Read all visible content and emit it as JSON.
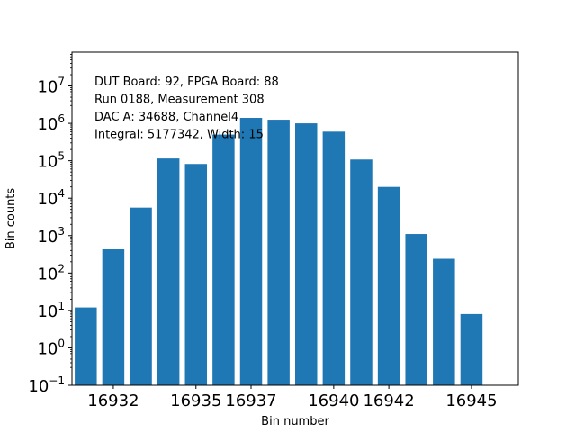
{
  "chart_data": {
    "type": "bar",
    "title": "",
    "xlabel": "Bin number",
    "ylabel": "Bin counts",
    "yscale": "log",
    "ylim": [
      0.1,
      80000000
    ],
    "xlim": [
      16930.5,
      16946.7
    ],
    "bar_color": "#1f77b4",
    "x": [
      16931,
      16932,
      16933,
      16934,
      16935,
      16936,
      16937,
      16938,
      16939,
      16940,
      16941,
      16942,
      16943,
      16944,
      16945,
      16946
    ],
    "values": [
      12,
      430,
      5600,
      115000,
      82000,
      500000,
      1400000,
      1250000,
      1000000,
      600000,
      108000,
      20000,
      1100,
      240,
      8,
      0
    ],
    "x_ticks": [
      16932,
      16935,
      16937,
      16940,
      16942,
      16945
    ],
    "y_ticks": [
      {
        "base": "10",
        "exp": "−1",
        "value": 0.1
      },
      {
        "base": "10",
        "exp": "0",
        "value": 1
      },
      {
        "base": "10",
        "exp": "1",
        "value": 10
      },
      {
        "base": "10",
        "exp": "2",
        "value": 100
      },
      {
        "base": "10",
        "exp": "3",
        "value": 1000
      },
      {
        "base": "10",
        "exp": "4",
        "value": 10000
      },
      {
        "base": "10",
        "exp": "5",
        "value": 100000
      },
      {
        "base": "10",
        "exp": "6",
        "value": 1000000
      },
      {
        "base": "10",
        "exp": "7",
        "value": 10000000
      }
    ],
    "annotation_lines": [
      "DUT Board: 92, FPGA Board: 88",
      "Run 0188, Measurement 308",
      "DAC A: 34688, Channel4",
      "Integral: 5177342, Width: 15"
    ]
  }
}
